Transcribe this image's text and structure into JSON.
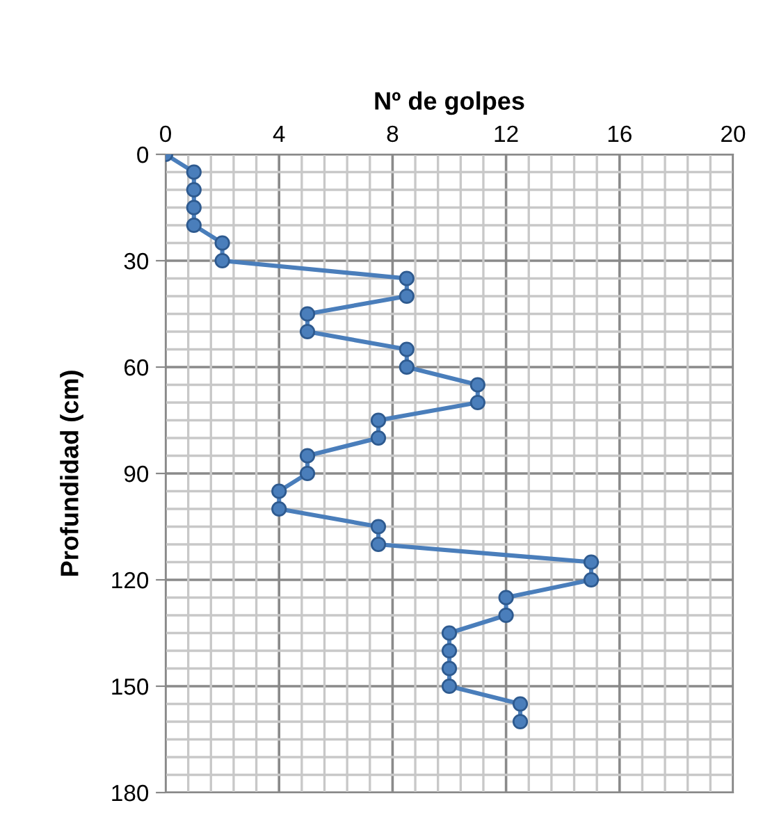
{
  "chart_data": {
    "type": "line",
    "xlabel": "Nº de golpes",
    "ylabel": "Profundidad (cm)",
    "x": [
      0,
      1,
      1,
      1,
      1,
      2,
      2,
      8.5,
      8.5,
      5,
      5,
      8.5,
      8.5,
      11,
      11,
      7.5,
      7.5,
      5,
      5,
      4,
      4,
      7.5,
      7.5,
      15,
      15,
      12,
      12,
      10,
      10,
      10,
      10,
      12.5,
      12.5
    ],
    "series": [
      {
        "color": "#4a7ebb",
        "values": [
          0,
          5,
          10,
          15,
          20,
          25,
          30,
          35,
          40,
          45,
          50,
          55,
          60,
          65,
          70,
          75,
          80,
          85,
          90,
          95,
          100,
          105,
          110,
          115,
          120,
          125,
          130,
          135,
          140,
          145,
          150,
          155,
          160
        ]
      }
    ],
    "xlim": [
      0,
      20
    ],
    "xticks": [
      0,
      4,
      8,
      12,
      16,
      20
    ],
    "ylim": [
      180,
      0
    ],
    "yticks": [
      0,
      30,
      60,
      90,
      120,
      150,
      180
    ],
    "grid": true,
    "marker": "circle",
    "line_style": "solid",
    "legend": false
  }
}
